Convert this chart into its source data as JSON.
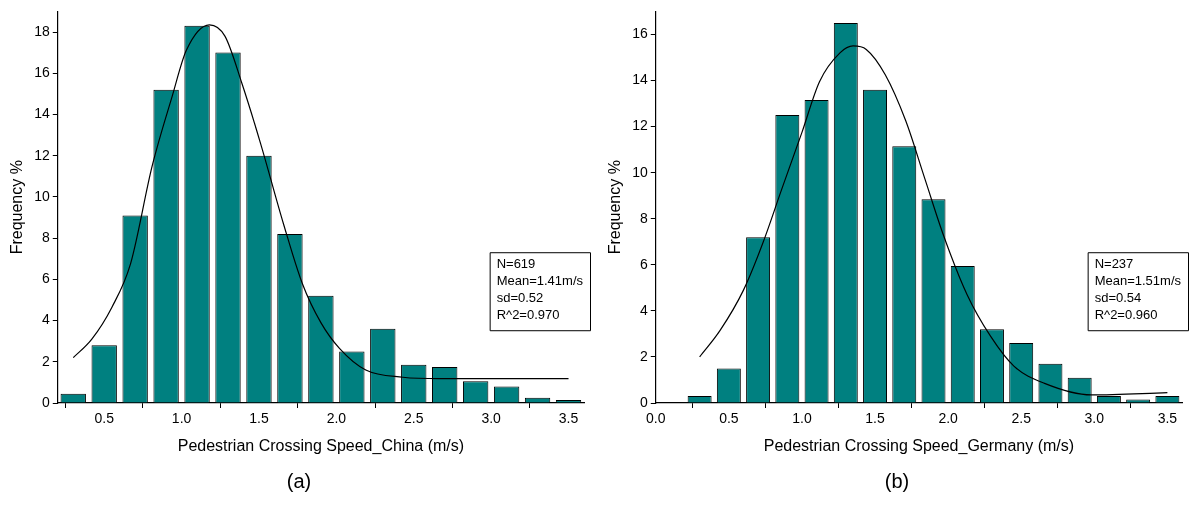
{
  "chart_data": [
    {
      "type": "histogram",
      "xlabel": "Pedestrian Crossing Speed_China (m/s)",
      "ylabel": "Frequency %",
      "bins": [
        0.2,
        0.4,
        0.6,
        0.8,
        1.0,
        1.2,
        1.4,
        1.6,
        1.8,
        2.0,
        2.2,
        2.4,
        2.6,
        2.8,
        3.0,
        3.2,
        3.4,
        3.6
      ],
      "series": [
        {
          "type": "histogram",
          "color": "#008080",
          "values": [
            0.45,
            2.8,
            9.1,
            15.2,
            18.3,
            17.0,
            12.0,
            8.2,
            5.2,
            2.5,
            3.6,
            1.85,
            1.75,
            1.05,
            0.8,
            0.25,
            0.15
          ]
        },
        {
          "type": "line",
          "color": "#000000",
          "x": [
            0.3,
            0.42,
            0.55,
            0.67,
            0.81,
            0.94,
            1.03,
            1.18,
            1.28,
            1.39,
            1.51,
            1.66,
            1.78,
            1.9,
            2.02,
            2.19,
            2.43,
            2.67,
            3.5
          ],
          "values": [
            2.2,
            3.1,
            4.65,
            6.75,
            11.5,
            14.9,
            17.1,
            18.35,
            17.8,
            15.5,
            12.6,
            8.65,
            5.8,
            3.9,
            2.65,
            1.6,
            1.25,
            1.18,
            1.18
          ]
        }
      ],
      "xlim": [
        0.2,
        3.6
      ],
      "xticks": [
        0.5,
        {
          "value": 1,
          "label": "1.0"
        },
        1.5,
        {
          "value": 2,
          "label": "2.0"
        },
        2.5,
        {
          "value": 3,
          "label": "3.0"
        },
        3.5
      ],
      "ylim": [
        0,
        19
      ],
      "yticks": [
        0,
        2,
        4,
        6,
        8,
        10,
        12,
        14,
        16,
        18
      ],
      "grid": false,
      "legend": false,
      "marker": "none",
      "annotations": [
        "N=619\nMean=1.41m/s\nsd=0.52\nR^2=0.970",
        "(a)"
      ]
    },
    {
      "type": "histogram",
      "xlabel": "Pedestrian Crossing Speed_Germany (m/s)",
      "ylabel": "Frequency %",
      "bins": [
        0.2,
        0.4,
        0.6,
        0.8,
        1.0,
        1.2,
        1.4,
        1.6,
        1.8,
        2.0,
        2.2,
        2.4,
        2.6,
        2.8,
        3.0,
        3.2,
        3.4,
        3.6
      ],
      "series": [
        {
          "type": "histogram",
          "color": "#008080",
          "values": [
            0.3,
            1.5,
            7.2,
            12.5,
            13.15,
            16.5,
            13.6,
            11.15,
            8.85,
            5.95,
            3.2,
            2.6,
            1.7,
            1.1,
            0.3,
            0.15,
            0.3
          ]
        },
        {
          "type": "line",
          "color": "#000000",
          "x": [
            0.3,
            0.44,
            0.6,
            0.73,
            0.86,
            1.0,
            1.12,
            1.26,
            1.35,
            1.44,
            1.57,
            1.71,
            1.84,
            1.97,
            2.13,
            2.29,
            2.45,
            2.66,
            2.98,
            3.5
          ],
          "values": [
            2.0,
            3.15,
            4.9,
            6.9,
            9.25,
            11.75,
            13.95,
            15.2,
            15.5,
            15.35,
            14.25,
            12.25,
            9.75,
            7.25,
            4.7,
            2.9,
            1.6,
            0.85,
            0.35,
            0.45
          ]
        }
      ],
      "xlim": [
        0.0,
        3.6
      ],
      "xticks": [
        {
          "value": 0,
          "label": "0.0"
        },
        0.5,
        {
          "value": 1,
          "label": "1.0"
        },
        1.5,
        {
          "value": 2,
          "label": "2.0"
        },
        2.5,
        {
          "value": 3,
          "label": "3.0"
        },
        3.5
      ],
      "ylim": [
        0,
        17
      ],
      "yticks": [
        0,
        2,
        4,
        6,
        8,
        10,
        12,
        14,
        16
      ],
      "grid": false,
      "legend": false,
      "marker": "none",
      "annotations": [
        "N=237\nMean=1.51m/s\nsd=0.54\nR^2=0.960",
        "(b)"
      ]
    }
  ]
}
